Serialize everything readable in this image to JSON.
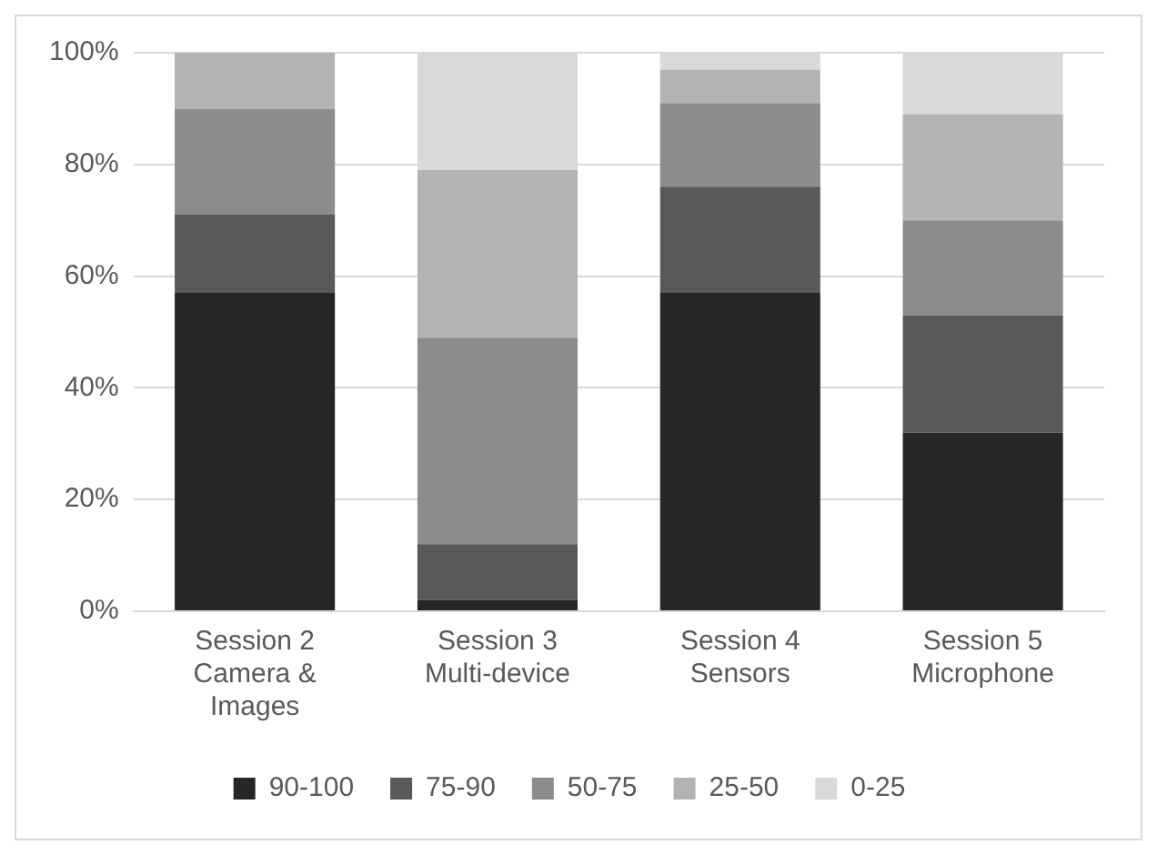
{
  "chart_data": {
    "type": "bar",
    "stacked": true,
    "categories": [
      "Session 2 Camera & Images",
      "Session 3 Multi-device",
      "Session 4 Sensors",
      "Session 5 Microphone"
    ],
    "series": [
      {
        "name": "90-100",
        "color": "#262626",
        "values": [
          57,
          2,
          57,
          32
        ]
      },
      {
        "name": "75-90",
        "color": "#595959",
        "values": [
          14,
          10,
          19,
          21
        ]
      },
      {
        "name": "50-75",
        "color": "#8c8c8c",
        "values": [
          19,
          37,
          15,
          17
        ]
      },
      {
        "name": "25-50",
        "color": "#b3b3b3",
        "values": [
          10,
          30,
          6,
          19
        ]
      },
      {
        "name": "0-25",
        "color": "#d9d9d9",
        "values": [
          0,
          21,
          3,
          11
        ]
      }
    ],
    "ylim": [
      0,
      100
    ],
    "yticks": [
      {
        "value": 0,
        "label": "0%"
      },
      {
        "value": 20,
        "label": "20%"
      },
      {
        "value": 40,
        "label": "40%"
      },
      {
        "value": 60,
        "label": "60%"
      },
      {
        "value": 80,
        "label": "80%"
      },
      {
        "value": 100,
        "label": "100%"
      }
    ],
    "grid": "y",
    "legend": "bottom"
  }
}
